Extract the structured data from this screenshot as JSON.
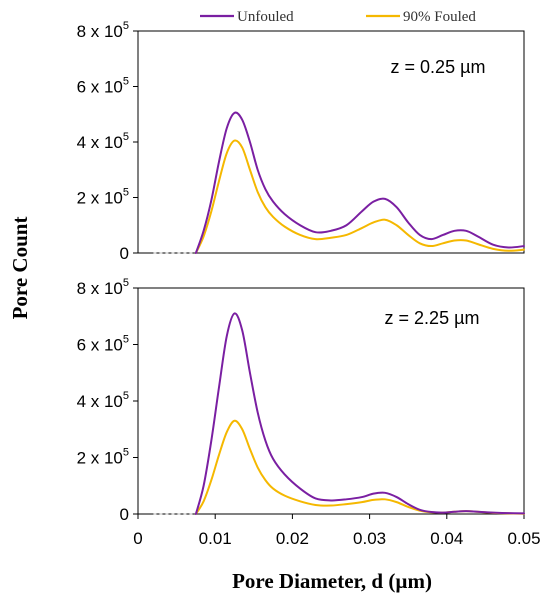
{
  "colors": {
    "unfouled": "#7a1fa2",
    "fouled": "#f5b800"
  },
  "legend": {
    "unfouled_label": "Unfouled",
    "fouled_label": "90% Fouled",
    "placement": "top-center"
  },
  "y_axis_title": "Pore Count",
  "x_axis_title": "Pore Diameter, d (µm)",
  "chart_data": [
    {
      "type": "line",
      "annotation": "z = 0.25 µm",
      "xlim": [
        0,
        0.05
      ],
      "ylim": [
        0,
        800000
      ],
      "y_ticks": [
        {
          "value": 0,
          "label": "0",
          "exp": ""
        },
        {
          "value": 200000,
          "label": "2 x 10",
          "exp": "5"
        },
        {
          "value": 400000,
          "label": "4 x 10",
          "exp": "5"
        },
        {
          "value": 600000,
          "label": "6 x 10",
          "exp": "5"
        },
        {
          "value": 800000,
          "label": "8 x 10",
          "exp": "5"
        }
      ],
      "grid": false,
      "series": [
        {
          "name": "Unfouled",
          "x": [
            0.0075,
            0.0085,
            0.0095,
            0.0105,
            0.0115,
            0.0125,
            0.0135,
            0.0145,
            0.0155,
            0.0165,
            0.0175,
            0.019,
            0.021,
            0.023,
            0.025,
            0.027,
            0.029,
            0.0305,
            0.032,
            0.0335,
            0.035,
            0.0365,
            0.038,
            0.0395,
            0.041,
            0.0425,
            0.044,
            0.046,
            0.048,
            0.05
          ],
          "y": [
            0,
            80000,
            190000,
            330000,
            450000,
            505000,
            480000,
            400000,
            300000,
            230000,
            185000,
            140000,
            100000,
            75000,
            80000,
            100000,
            150000,
            185000,
            195000,
            165000,
            110000,
            65000,
            50000,
            65000,
            80000,
            80000,
            60000,
            30000,
            20000,
            25000
          ]
        },
        {
          "name": "90% Fouled",
          "x": [
            0.0075,
            0.0085,
            0.0095,
            0.0105,
            0.0115,
            0.0125,
            0.0135,
            0.0145,
            0.0155,
            0.0165,
            0.0175,
            0.019,
            0.021,
            0.023,
            0.025,
            0.027,
            0.029,
            0.0305,
            0.032,
            0.0335,
            0.035,
            0.0365,
            0.038,
            0.0395,
            0.041,
            0.0425,
            0.044,
            0.046,
            0.048,
            0.05
          ],
          "y": [
            0,
            60000,
            150000,
            260000,
            360000,
            405000,
            380000,
            300000,
            220000,
            165000,
            130000,
            95000,
            65000,
            50000,
            55000,
            65000,
            90000,
            110000,
            120000,
            100000,
            65000,
            35000,
            25000,
            35000,
            45000,
            45000,
            32000,
            15000,
            8000,
            12000
          ]
        }
      ]
    },
    {
      "type": "line",
      "annotation": "z = 2.25 µm",
      "xlim": [
        0,
        0.05
      ],
      "ylim": [
        0,
        800000
      ],
      "y_ticks": [
        {
          "value": 0,
          "label": "0",
          "exp": ""
        },
        {
          "value": 200000,
          "label": "2 x 10",
          "exp": "5"
        },
        {
          "value": 400000,
          "label": "4 x 10",
          "exp": "5"
        },
        {
          "value": 600000,
          "label": "6 x 10",
          "exp": "5"
        },
        {
          "value": 800000,
          "label": "8 x 10",
          "exp": "5"
        }
      ],
      "x_ticks": [
        {
          "value": 0,
          "label": "0"
        },
        {
          "value": 0.01,
          "label": "0.01"
        },
        {
          "value": 0.02,
          "label": "0.02"
        },
        {
          "value": 0.03,
          "label": "0.03"
        },
        {
          "value": 0.04,
          "label": "0.04"
        },
        {
          "value": 0.05,
          "label": "0.05"
        }
      ],
      "grid": false,
      "series": [
        {
          "name": "Unfouled",
          "x": [
            0.0075,
            0.0085,
            0.0095,
            0.0105,
            0.0115,
            0.0125,
            0.0135,
            0.0145,
            0.0155,
            0.0165,
            0.0175,
            0.019,
            0.021,
            0.023,
            0.025,
            0.027,
            0.029,
            0.0305,
            0.032,
            0.0335,
            0.035,
            0.0365,
            0.038,
            0.0395,
            0.041,
            0.0425,
            0.044,
            0.046,
            0.048,
            0.05
          ],
          "y": [
            0,
            100000,
            260000,
            450000,
            630000,
            710000,
            650000,
            500000,
            360000,
            260000,
            195000,
            140000,
            90000,
            55000,
            48000,
            52000,
            60000,
            72000,
            75000,
            60000,
            35000,
            15000,
            7000,
            5000,
            8000,
            10000,
            8000,
            5000,
            3000,
            2000
          ]
        },
        {
          "name": "90% Fouled",
          "x": [
            0.0075,
            0.0085,
            0.0095,
            0.0105,
            0.0115,
            0.0125,
            0.0135,
            0.0145,
            0.0155,
            0.0165,
            0.0175,
            0.019,
            0.021,
            0.023,
            0.025,
            0.027,
            0.029,
            0.0305,
            0.032,
            0.0335,
            0.035,
            0.0365,
            0.038,
            0.0395,
            0.041,
            0.0425,
            0.044,
            0.046,
            0.048,
            0.05
          ],
          "y": [
            0,
            45000,
            120000,
            210000,
            290000,
            330000,
            300000,
            230000,
            165000,
            120000,
            90000,
            65000,
            45000,
            32000,
            30000,
            35000,
            42000,
            50000,
            52000,
            42000,
            25000,
            12000,
            6000,
            5000,
            8000,
            10000,
            8000,
            4000,
            2000,
            1000
          ]
        }
      ]
    }
  ]
}
